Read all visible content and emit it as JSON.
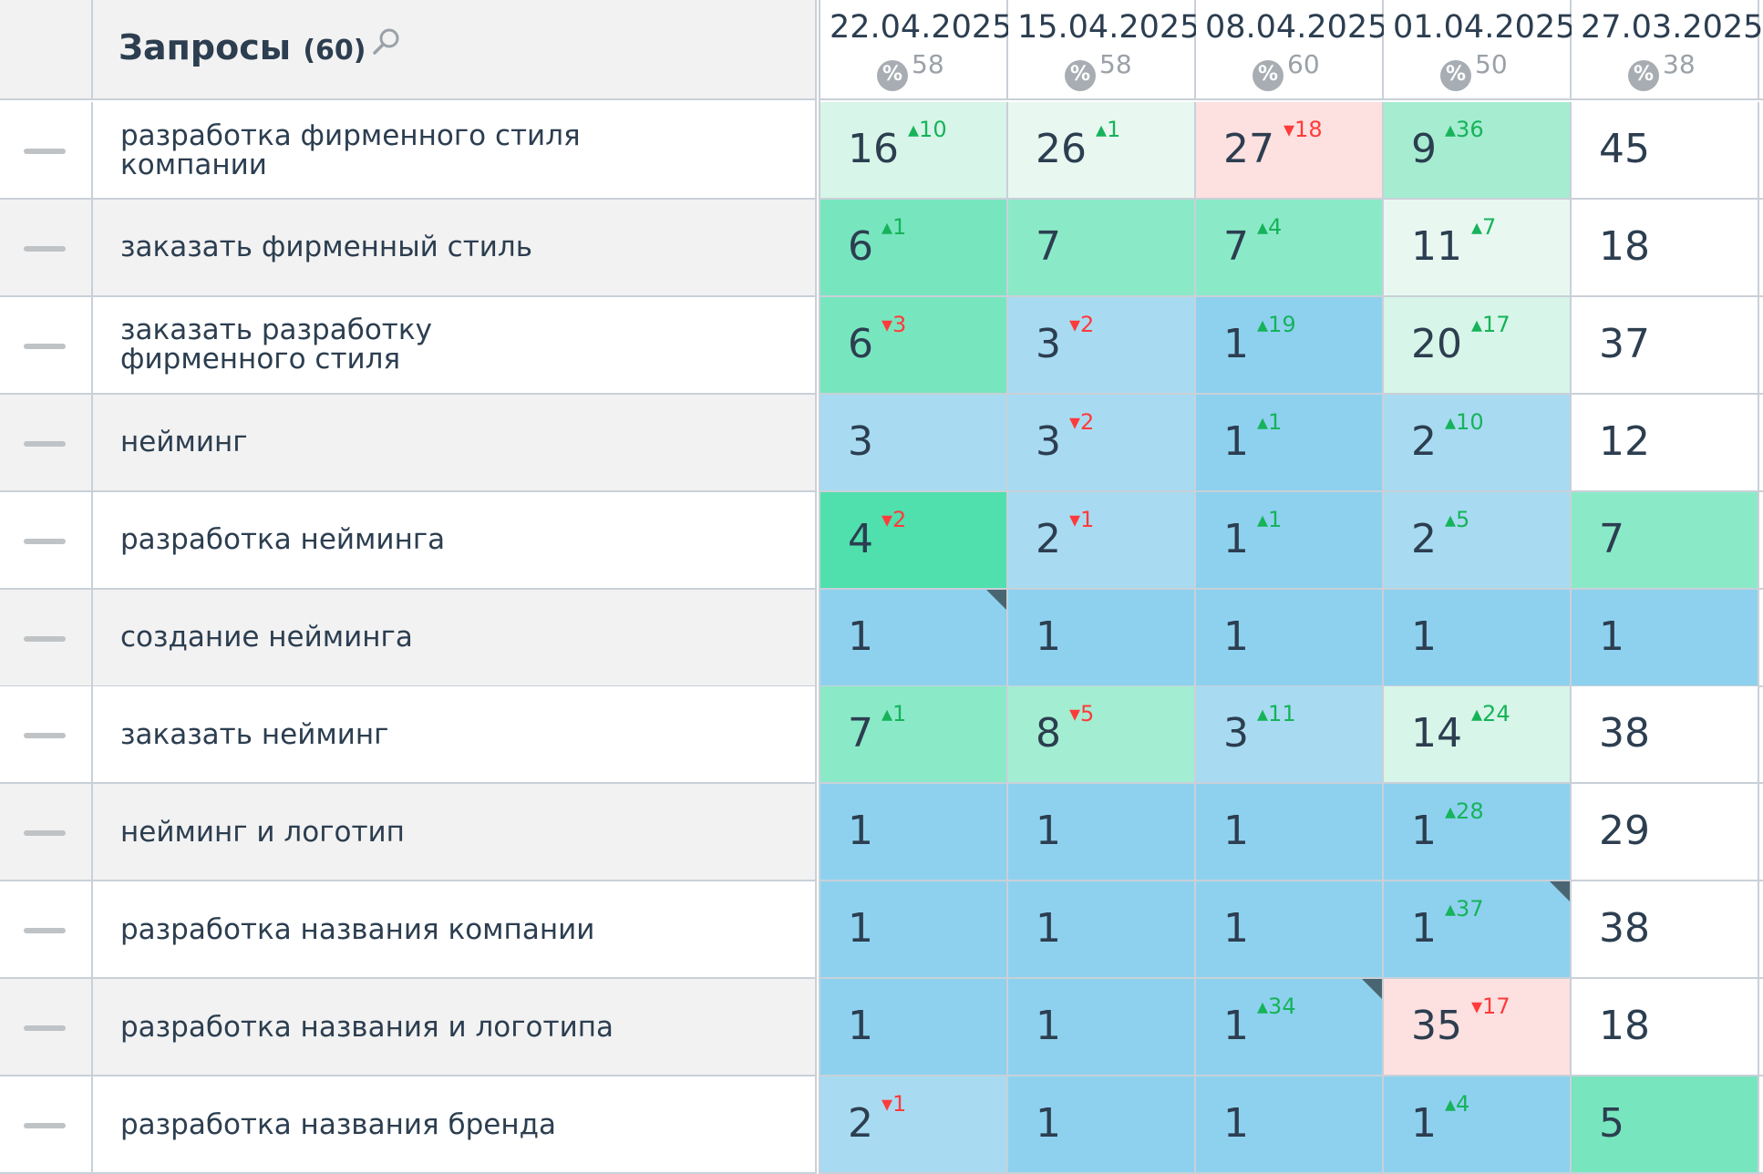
{
  "header": {
    "title": "Запросы",
    "count": "(60)",
    "dates": [
      {
        "date": "22.04.2025",
        "pct_value": "58"
      },
      {
        "date": "15.04.2025",
        "pct_value": "58"
      },
      {
        "date": "08.04.2025",
        "pct_value": "60"
      },
      {
        "date": "01.04.2025",
        "pct_value": "50"
      },
      {
        "date": "27.03.2025",
        "pct_value": "38"
      }
    ],
    "pct_symbol": "%"
  },
  "colors": {
    "very_light_green": "#e6f7ef",
    "light_green": "#d5f3e6",
    "mint": "#a3ecd0",
    "green": "#7ee3bf",
    "strong_green": "#4fdfaf",
    "light_blue": "#a8d8f0",
    "blue": "#8bd0ef",
    "pink": "#fde0e0",
    "white": "#ffffff"
  },
  "rows": [
    {
      "query": "разработка фирменного стиля компании",
      "cells": [
        {
          "v": "16",
          "d": "10",
          "dir": "up",
          "bg": "#d7f5e8"
        },
        {
          "v": "26",
          "d": "1",
          "dir": "up",
          "bg": "#e8f8f1"
        },
        {
          "v": "27",
          "d": "18",
          "dir": "dn",
          "bg": "#fde0e0"
        },
        {
          "v": "9",
          "d": "36",
          "dir": "up",
          "bg": "#a6ecd1"
        },
        {
          "v": "45",
          "d": "",
          "dir": "",
          "bg": "#ffffff"
        }
      ]
    },
    {
      "query": "заказать фирменный стиль",
      "cells": [
        {
          "v": "6",
          "d": "1",
          "dir": "up",
          "bg": "#77e6bf"
        },
        {
          "v": "7",
          "d": "",
          "dir": "",
          "bg": "#8aeac8"
        },
        {
          "v": "7",
          "d": "4",
          "dir": "up",
          "bg": "#8aeac8"
        },
        {
          "v": "11",
          "d": "7",
          "dir": "up",
          "bg": "#e8f8f1"
        },
        {
          "v": "18",
          "d": "",
          "dir": "",
          "bg": "#ffffff"
        }
      ]
    },
    {
      "query": "заказать разработку фирменного стиля",
      "cells": [
        {
          "v": "6",
          "d": "3",
          "dir": "dn",
          "bg": "#77e6bf"
        },
        {
          "v": "3",
          "d": "2",
          "dir": "dn",
          "bg": "#a8dbf1"
        },
        {
          "v": "1",
          "d": "19",
          "dir": "up",
          "bg": "#8ed1ef"
        },
        {
          "v": "20",
          "d": "17",
          "dir": "up",
          "bg": "#d7f5e8"
        },
        {
          "v": "37",
          "d": "",
          "dir": "",
          "bg": "#ffffff"
        }
      ]
    },
    {
      "query": "нейминг",
      "cells": [
        {
          "v": "3",
          "d": "",
          "dir": "",
          "bg": "#a8dbf1"
        },
        {
          "v": "3",
          "d": "2",
          "dir": "dn",
          "bg": "#a8dbf1"
        },
        {
          "v": "1",
          "d": "1",
          "dir": "up",
          "bg": "#8ed1ef"
        },
        {
          "v": "2",
          "d": "10",
          "dir": "up",
          "bg": "#a8dbf1"
        },
        {
          "v": "12",
          "d": "",
          "dir": "",
          "bg": "#ffffff"
        }
      ]
    },
    {
      "query": "разработка нейминга",
      "cells": [
        {
          "v": "4",
          "d": "2",
          "dir": "dn",
          "bg": "#4fe0ae"
        },
        {
          "v": "2",
          "d": "1",
          "dir": "dn",
          "bg": "#a8dbf1"
        },
        {
          "v": "1",
          "d": "1",
          "dir": "up",
          "bg": "#8ed1ef"
        },
        {
          "v": "2",
          "d": "5",
          "dir": "up",
          "bg": "#a8dbf1"
        },
        {
          "v": "7",
          "d": "",
          "dir": "",
          "bg": "#8aeac8"
        }
      ]
    },
    {
      "query": "создание нейминга",
      "cells": [
        {
          "v": "1",
          "d": "",
          "dir": "",
          "bg": "#8ed1ef",
          "corner": true
        },
        {
          "v": "1",
          "d": "",
          "dir": "",
          "bg": "#8ed1ef"
        },
        {
          "v": "1",
          "d": "",
          "dir": "",
          "bg": "#8ed1ef"
        },
        {
          "v": "1",
          "d": "",
          "dir": "",
          "bg": "#8ed1ef"
        },
        {
          "v": "1",
          "d": "",
          "dir": "",
          "bg": "#8ed1ef"
        }
      ]
    },
    {
      "query": "заказать нейминг",
      "cells": [
        {
          "v": "7",
          "d": "1",
          "dir": "up",
          "bg": "#8aeac8"
        },
        {
          "v": "8",
          "d": "5",
          "dir": "dn",
          "bg": "#a3eed2"
        },
        {
          "v": "3",
          "d": "11",
          "dir": "up",
          "bg": "#a8dbf1"
        },
        {
          "v": "14",
          "d": "24",
          "dir": "up",
          "bg": "#d7f5e8"
        },
        {
          "v": "38",
          "d": "",
          "dir": "",
          "bg": "#ffffff"
        }
      ]
    },
    {
      "query": "нейминг и логотип",
      "cells": [
        {
          "v": "1",
          "d": "",
          "dir": "",
          "bg": "#8ed1ef"
        },
        {
          "v": "1",
          "d": "",
          "dir": "",
          "bg": "#8ed1ef"
        },
        {
          "v": "1",
          "d": "",
          "dir": "",
          "bg": "#8ed1ef"
        },
        {
          "v": "1",
          "d": "28",
          "dir": "up",
          "bg": "#8ed1ef"
        },
        {
          "v": "29",
          "d": "",
          "dir": "",
          "bg": "#ffffff"
        }
      ]
    },
    {
      "query": "разработка названия компании",
      "cells": [
        {
          "v": "1",
          "d": "",
          "dir": "",
          "bg": "#8ed1ef"
        },
        {
          "v": "1",
          "d": "",
          "dir": "",
          "bg": "#8ed1ef"
        },
        {
          "v": "1",
          "d": "",
          "dir": "",
          "bg": "#8ed1ef"
        },
        {
          "v": "1",
          "d": "37",
          "dir": "up",
          "bg": "#8ed1ef",
          "corner": true
        },
        {
          "v": "38",
          "d": "",
          "dir": "",
          "bg": "#ffffff"
        }
      ]
    },
    {
      "query": "разработка названия и логотипа",
      "cells": [
        {
          "v": "1",
          "d": "",
          "dir": "",
          "bg": "#8ed1ef"
        },
        {
          "v": "1",
          "d": "",
          "dir": "",
          "bg": "#8ed1ef"
        },
        {
          "v": "1",
          "d": "34",
          "dir": "up",
          "bg": "#8ed1ef",
          "corner": true
        },
        {
          "v": "35",
          "d": "17",
          "dir": "dn",
          "bg": "#fde0e0"
        },
        {
          "v": "18",
          "d": "",
          "dir": "",
          "bg": "#ffffff"
        }
      ]
    },
    {
      "query": "разработка названия бренда",
      "cells": [
        {
          "v": "2",
          "d": "1",
          "dir": "dn",
          "bg": "#a8dbf1"
        },
        {
          "v": "1",
          "d": "",
          "dir": "",
          "bg": "#8ed1ef"
        },
        {
          "v": "1",
          "d": "",
          "dir": "",
          "bg": "#8ed1ef"
        },
        {
          "v": "1",
          "d": "4",
          "dir": "up",
          "bg": "#8ed1ef"
        },
        {
          "v": "5",
          "d": "",
          "dir": "",
          "bg": "#77e6bf"
        }
      ]
    }
  ]
}
